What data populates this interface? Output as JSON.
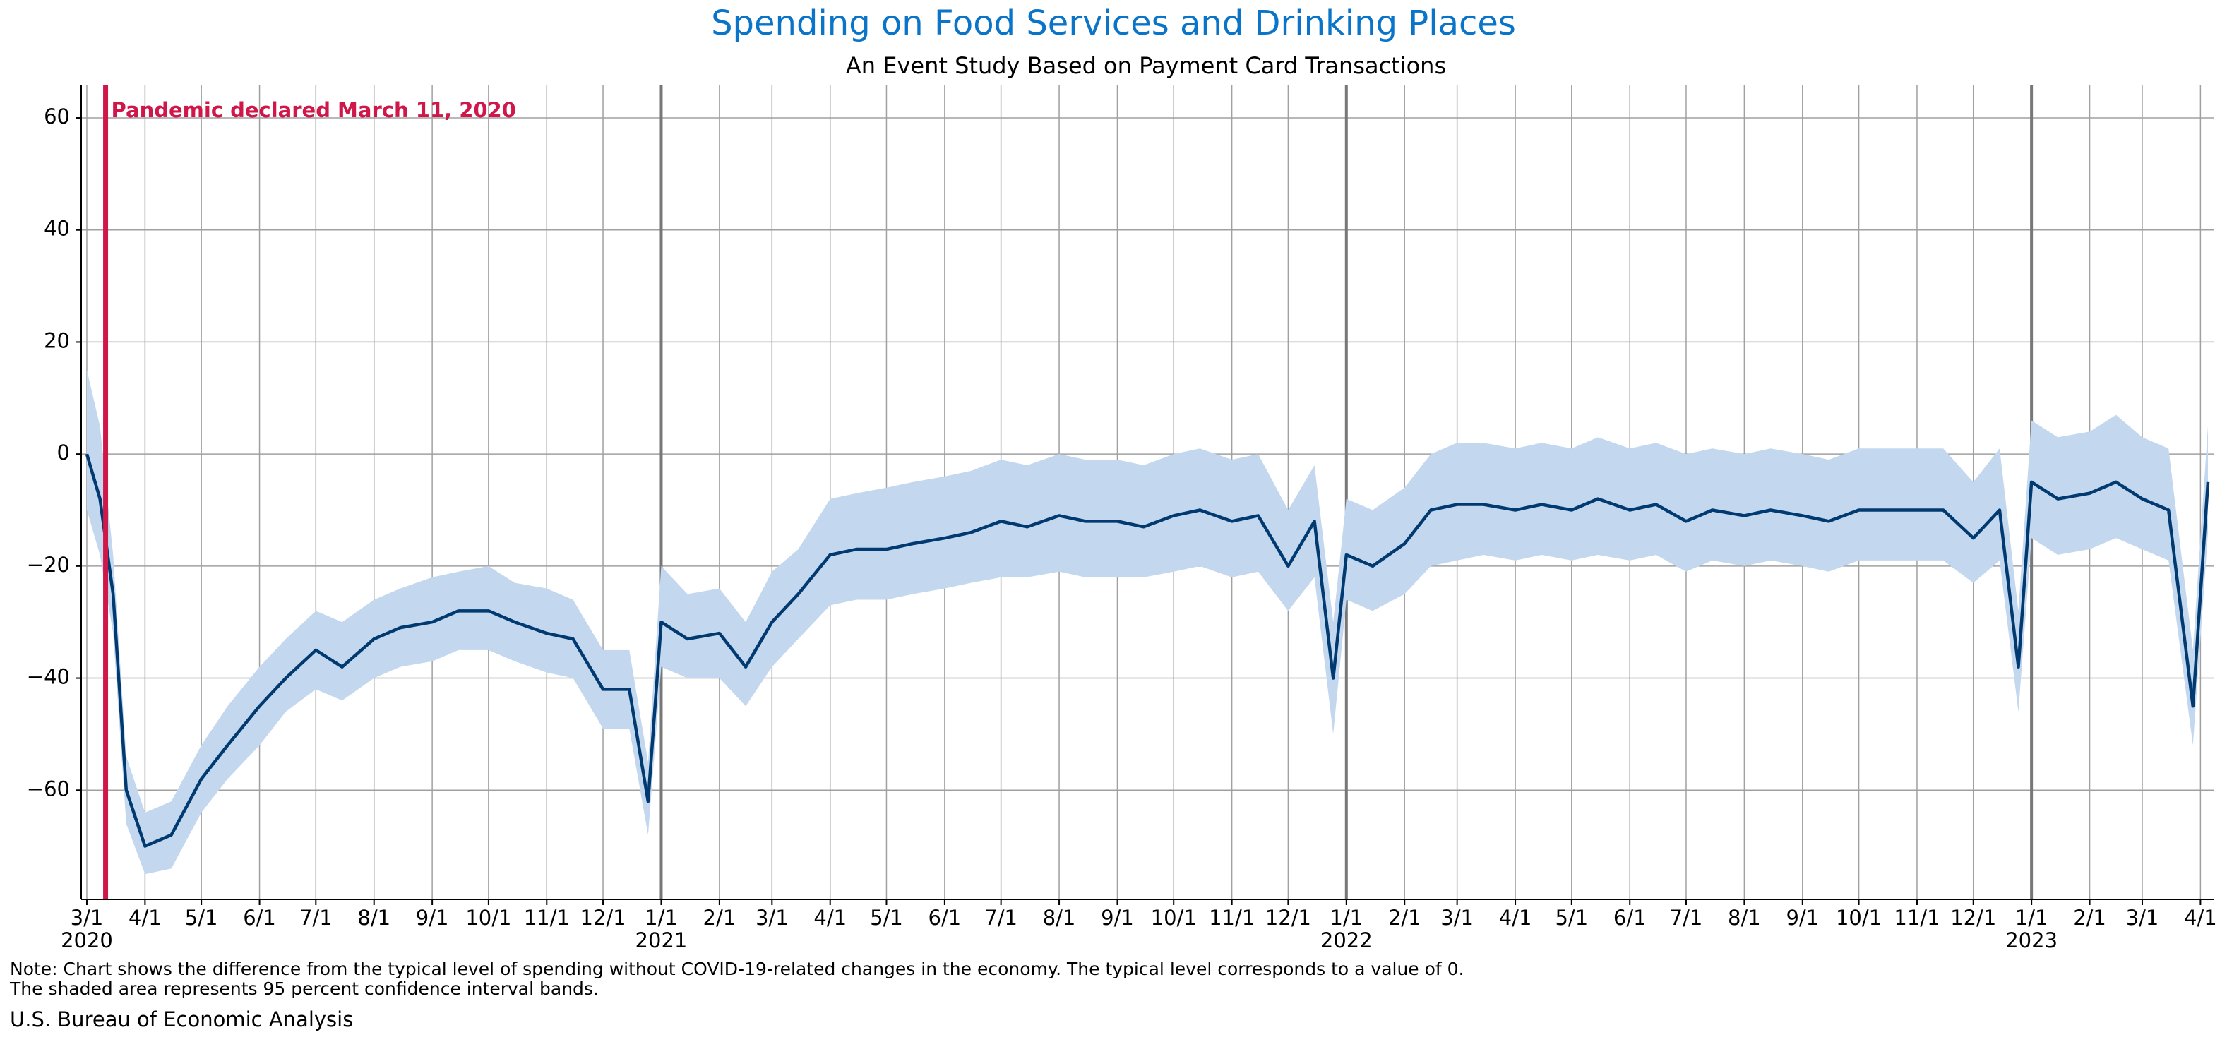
{
  "chart_data": {
    "type": "line",
    "title": "Spending on Food Services and Drinking Places",
    "subtitle": "An Event Study Based on Payment Card Transactions",
    "note": [
      "Note: Chart shows the difference from the typical level of spending without COVID-19-related changes in the economy. The typical level corresponds to a value of 0.",
      "The shaded area represents 95 percent confidence interval bands."
    ],
    "source": "U.S. Bureau of Economic Analysis",
    "annotation": {
      "x": "2020-03-11",
      "text": "Pandemic declared March 11, 2020",
      "color": "#d0174a"
    },
    "color": "#003a70",
    "band_color": "#c3d7ef",
    "grid": true,
    "x": [
      "2020-03-01",
      "2020-03-08",
      "2020-03-15",
      "2020-03-22",
      "2020-04-01",
      "2020-04-15",
      "2020-05-01",
      "2020-05-15",
      "2020-06-01",
      "2020-06-15",
      "2020-07-01",
      "2020-07-15",
      "2020-08-01",
      "2020-08-15",
      "2020-09-01",
      "2020-09-15",
      "2020-10-01",
      "2020-10-15",
      "2020-11-01",
      "2020-11-15",
      "2020-12-01",
      "2020-12-15",
      "2020-12-25",
      "2021-01-01",
      "2021-01-15",
      "2021-02-01",
      "2021-02-15",
      "2021-03-01",
      "2021-03-15",
      "2021-04-01",
      "2021-04-15",
      "2021-05-01",
      "2021-05-15",
      "2021-06-01",
      "2021-06-15",
      "2021-07-01",
      "2021-07-15",
      "2021-08-01",
      "2021-08-15",
      "2021-09-01",
      "2021-09-15",
      "2021-10-01",
      "2021-10-15",
      "2021-11-01",
      "2021-11-15",
      "2021-12-01",
      "2021-12-15",
      "2021-12-25",
      "2022-01-01",
      "2022-01-15",
      "2022-02-01",
      "2022-02-15",
      "2022-03-01",
      "2022-03-15",
      "2022-04-01",
      "2022-04-15",
      "2022-05-01",
      "2022-05-15",
      "2022-06-01",
      "2022-06-15",
      "2022-07-01",
      "2022-07-15",
      "2022-08-01",
      "2022-08-15",
      "2022-09-01",
      "2022-09-15",
      "2022-10-01",
      "2022-10-15",
      "2022-11-01",
      "2022-11-15",
      "2022-12-01",
      "2022-12-15",
      "2022-12-25",
      "2023-01-01",
      "2023-01-15",
      "2023-02-01",
      "2023-02-15",
      "2023-03-01",
      "2023-03-15",
      "2023-03-28",
      "2023-04-05"
    ],
    "values": [
      0,
      -8,
      -25,
      -60,
      -70,
      -68,
      -58,
      -52,
      -45,
      -40,
      -35,
      -38,
      -33,
      -31,
      -30,
      -28,
      -28,
      -30,
      -32,
      -33,
      -42,
      -42,
      -62,
      -30,
      -33,
      -32,
      -38,
      -30,
      -25,
      -18,
      -17,
      -17,
      -16,
      -15,
      -14,
      -12,
      -13,
      -11,
      -12,
      -12,
      -13,
      -11,
      -10,
      -12,
      -11,
      -20,
      -12,
      -40,
      -18,
      -20,
      -16,
      -10,
      -9,
      -9,
      -10,
      -9,
      -10,
      -8,
      -10,
      -9,
      -12,
      -10,
      -11,
      -10,
      -11,
      -12,
      -10,
      -10,
      -10,
      -10,
      -15,
      -10,
      -38,
      -5,
      -8,
      -7,
      -5,
      -8,
      -10,
      -45,
      -5
    ],
    "ci_lower": [
      -10,
      -18,
      -32,
      -66,
      -75,
      -74,
      -64,
      -58,
      -52,
      -46,
      -42,
      -44,
      -40,
      -38,
      -37,
      -35,
      -35,
      -37,
      -39,
      -40,
      -49,
      -49,
      -68,
      -38,
      -40,
      -40,
      -45,
      -38,
      -33,
      -27,
      -26,
      -26,
      -25,
      -24,
      -23,
      -22,
      -22,
      -21,
      -22,
      -22,
      -22,
      -21,
      -20,
      -22,
      -21,
      -28,
      -22,
      -50,
      -26,
      -28,
      -25,
      -20,
      -19,
      -18,
      -19,
      -18,
      -19,
      -18,
      -19,
      -18,
      -21,
      -19,
      -20,
      -19,
      -20,
      -21,
      -19,
      -19,
      -19,
      -19,
      -23,
      -19,
      -46,
      -15,
      -18,
      -17,
      -15,
      -17,
      -19,
      -52,
      -14
    ],
    "ci_upper": [
      15,
      5,
      -18,
      -54,
      -64,
      -62,
      -52,
      -45,
      -38,
      -33,
      -28,
      -30,
      -26,
      -24,
      -22,
      -21,
      -20,
      -23,
      -24,
      -26,
      -35,
      -35,
      -55,
      -20,
      -25,
      -24,
      -30,
      -21,
      -17,
      -8,
      -7,
      -6,
      -5,
      -4,
      -3,
      -1,
      -2,
      0,
      -1,
      -1,
      -2,
      0,
      1,
      -1,
      0,
      -10,
      -2,
      -30,
      -8,
      -10,
      -6,
      0,
      2,
      2,
      1,
      2,
      1,
      3,
      1,
      2,
      0,
      1,
      0,
      1,
      0,
      -1,
      1,
      1,
      1,
      1,
      -5,
      1,
      -28,
      6,
      3,
      4,
      7,
      3,
      1,
      -35,
      5
    ],
    "xlim": [
      "2020-02-27",
      "2023-04-08"
    ],
    "xticks": [
      {
        "value": "2020-03-01",
        "label": "3/1"
      },
      {
        "value": "2020-04-01",
        "label": "4/1"
      },
      {
        "value": "2020-05-01",
        "label": "5/1"
      },
      {
        "value": "2020-06-01",
        "label": "6/1"
      },
      {
        "value": "2020-07-01",
        "label": "7/1"
      },
      {
        "value": "2020-08-01",
        "label": "8/1"
      },
      {
        "value": "2020-09-01",
        "label": "9/1"
      },
      {
        "value": "2020-10-01",
        "label": "10/1"
      },
      {
        "value": "2020-11-01",
        "label": "11/1"
      },
      {
        "value": "2020-12-01",
        "label": "12/1"
      },
      {
        "value": "2021-01-01",
        "label": "1/1"
      },
      {
        "value": "2021-02-01",
        "label": "2/1"
      },
      {
        "value": "2021-03-01",
        "label": "3/1"
      },
      {
        "value": "2021-04-01",
        "label": "4/1"
      },
      {
        "value": "2021-05-01",
        "label": "5/1"
      },
      {
        "value": "2021-06-01",
        "label": "6/1"
      },
      {
        "value": "2021-07-01",
        "label": "7/1"
      },
      {
        "value": "2021-08-01",
        "label": "8/1"
      },
      {
        "value": "2021-09-01",
        "label": "9/1"
      },
      {
        "value": "2021-10-01",
        "label": "10/1"
      },
      {
        "value": "2021-11-01",
        "label": "11/1"
      },
      {
        "value": "2021-12-01",
        "label": "12/1"
      },
      {
        "value": "2022-01-01",
        "label": "1/1"
      },
      {
        "value": "2022-02-01",
        "label": "2/1"
      },
      {
        "value": "2022-03-01",
        "label": "3/1"
      },
      {
        "value": "2022-04-01",
        "label": "4/1"
      },
      {
        "value": "2022-05-01",
        "label": "5/1"
      },
      {
        "value": "2022-06-01",
        "label": "6/1"
      },
      {
        "value": "2022-07-01",
        "label": "7/1"
      },
      {
        "value": "2022-08-01",
        "label": "8/1"
      },
      {
        "value": "2022-09-01",
        "label": "9/1"
      },
      {
        "value": "2022-10-01",
        "label": "10/1"
      },
      {
        "value": "2022-11-01",
        "label": "11/1"
      },
      {
        "value": "2022-12-01",
        "label": "12/1"
      },
      {
        "value": "2023-01-01",
        "label": "1/1"
      },
      {
        "value": "2023-02-01",
        "label": "2/1"
      },
      {
        "value": "2023-03-01",
        "label": "3/1"
      },
      {
        "value": "2023-04-01",
        "label": "4/1"
      }
    ],
    "year_labels": [
      {
        "value": "2020-03-01",
        "label": "2020"
      },
      {
        "value": "2021-01-01",
        "label": "2021"
      },
      {
        "value": "2022-01-01",
        "label": "2022"
      },
      {
        "value": "2023-01-01",
        "label": "2023"
      }
    ],
    "ylim": [
      -79.5,
      65.8
    ],
    "yticks": [
      {
        "value": -60,
        "label": "−60"
      },
      {
        "value": -40,
        "label": "−40"
      },
      {
        "value": -20,
        "label": "−20"
      },
      0,
      20,
      40,
      60
    ]
  }
}
